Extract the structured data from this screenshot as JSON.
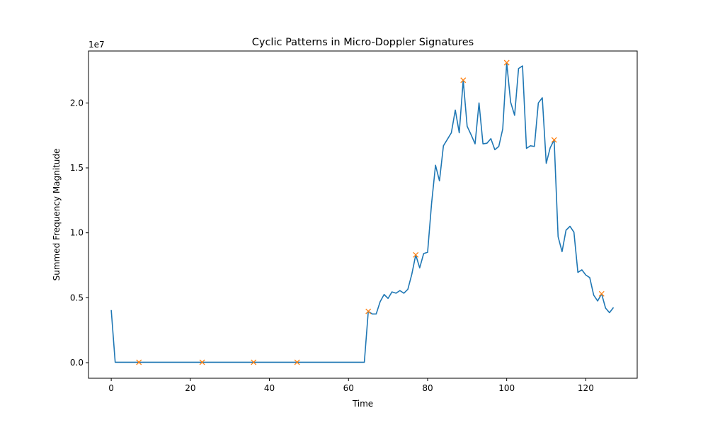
{
  "chart_data": {
    "type": "line",
    "title": "Cyclic Patterns in Micro-Doppler Signatures",
    "xlabel": "Time",
    "ylabel": "Summed Frequency Magnitude",
    "y_offset_label": "1e7",
    "xlim": [
      -5.75,
      133.0
    ],
    "ylim": [
      -1200000,
      24000000
    ],
    "xticks": [
      0,
      20,
      40,
      60,
      80,
      100,
      120
    ],
    "yticks": [
      0,
      5000000,
      10000000,
      15000000,
      20000000
    ],
    "ytick_labels": [
      "0.0",
      "0.5",
      "1.0",
      "1.5",
      "2.0"
    ],
    "grid": false,
    "series": [
      {
        "color": "#1f77b4",
        "marker": "none",
        "x": [
          0,
          1,
          2,
          3,
          4,
          5,
          6,
          7,
          8,
          9,
          10,
          11,
          12,
          13,
          14,
          15,
          16,
          17,
          18,
          19,
          20,
          21,
          22,
          23,
          24,
          25,
          26,
          27,
          28,
          29,
          30,
          31,
          32,
          33,
          34,
          35,
          36,
          37,
          38,
          39,
          40,
          41,
          42,
          43,
          44,
          45,
          46,
          47,
          48,
          49,
          50,
          51,
          52,
          53,
          54,
          55,
          56,
          57,
          58,
          59,
          60,
          61,
          62,
          63,
          64,
          65,
          66,
          67,
          68,
          69,
          70,
          71,
          72,
          73,
          74,
          75,
          76,
          77,
          78,
          79,
          80,
          81,
          82,
          83,
          84,
          85,
          86,
          87,
          88,
          89,
          90,
          91,
          92,
          93,
          94,
          95,
          96,
          97,
          98,
          99,
          100,
          101,
          102,
          103,
          104,
          105,
          106,
          107,
          108,
          109,
          110,
          111,
          112,
          113,
          114,
          115,
          116,
          117,
          118,
          119,
          120,
          121,
          122,
          123,
          124,
          125,
          126,
          127
        ],
        "y": [
          4050000,
          30000,
          30000,
          30000,
          30000,
          30000,
          30000,
          30000,
          30000,
          30000,
          30000,
          30000,
          30000,
          30000,
          30000,
          30000,
          30000,
          30000,
          30000,
          30000,
          30000,
          30000,
          30000,
          30000,
          30000,
          30000,
          30000,
          30000,
          30000,
          30000,
          30000,
          30000,
          30000,
          30000,
          30000,
          30000,
          30000,
          30000,
          30000,
          30000,
          30000,
          30000,
          30000,
          30000,
          30000,
          30000,
          30000,
          30000,
          30000,
          30000,
          30000,
          30000,
          30000,
          30000,
          30000,
          30000,
          30000,
          30000,
          30000,
          30000,
          30000,
          30000,
          30000,
          30000,
          30000,
          3950000,
          3750000,
          3750000,
          4700000,
          5250000,
          4950000,
          5450000,
          5350000,
          5550000,
          5350000,
          5650000,
          6800000,
          8300000,
          7300000,
          8400000,
          8500000,
          12250000,
          15200000,
          14000000,
          16700000,
          17200000,
          17700000,
          19450000,
          17700000,
          21750000,
          18200000,
          17550000,
          16850000,
          20000000,
          16850000,
          16900000,
          17250000,
          16400000,
          16650000,
          18000000,
          23100000,
          20050000,
          19050000,
          22650000,
          22850000,
          16500000,
          16700000,
          16650000,
          20000000,
          20400000,
          15350000,
          16550000,
          17150000,
          9700000,
          8550000,
          10200000,
          10500000,
          10050000,
          6950000,
          7150000,
          6750000,
          6550000,
          5200000,
          4750000,
          5300000,
          4200000,
          3850000,
          4250000
        ]
      },
      {
        "color": "#ff7f0e",
        "marker": "x",
        "x": [
          7,
          23,
          36,
          47,
          65,
          77,
          89,
          100,
          112,
          124
        ],
        "y": [
          30000,
          30000,
          30000,
          30000,
          3950000,
          8300000,
          21750000,
          23100000,
          17150000,
          5300000
        ]
      }
    ]
  }
}
